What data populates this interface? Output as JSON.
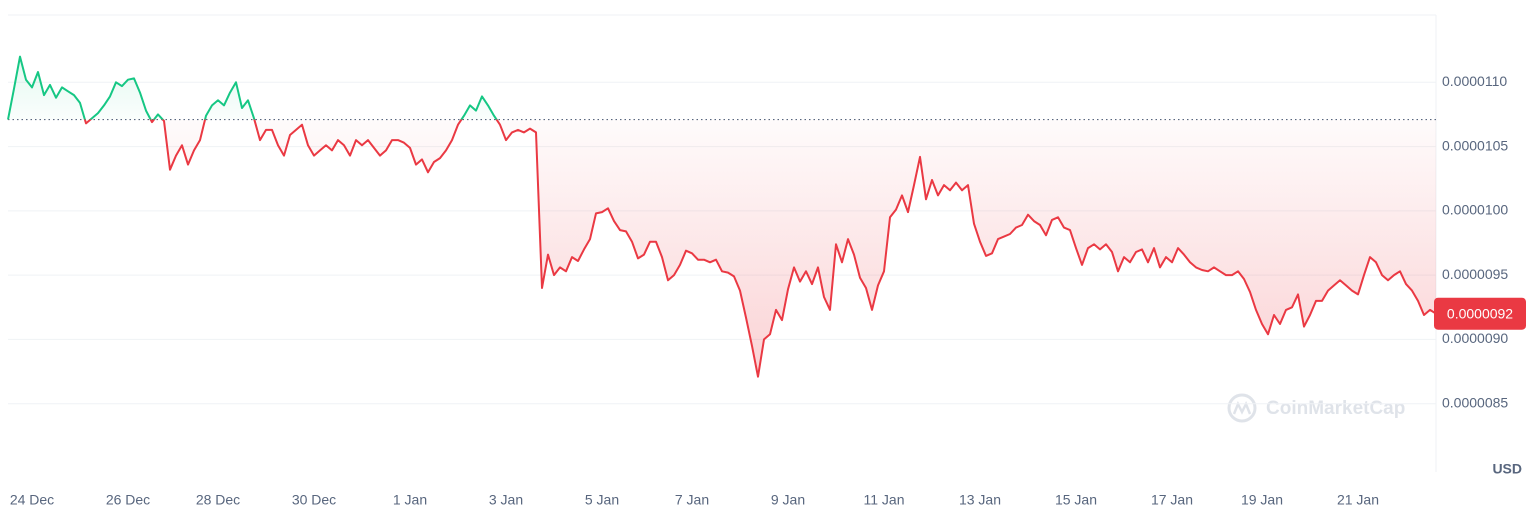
{
  "chart_data": {
    "type": "line",
    "categories": [
      null,
      null,
      null,
      null,
      "24 Dec",
      null,
      null,
      null,
      null,
      null,
      null,
      null,
      null,
      null,
      null,
      null,
      null,
      null,
      null,
      null,
      "26 Dec",
      null,
      null,
      null,
      null,
      null,
      null,
      null,
      null,
      null,
      null,
      null,
      null,
      null,
      null,
      "28 Dec",
      null,
      null,
      null,
      null,
      null,
      null,
      null,
      null,
      null,
      null,
      null,
      null,
      null,
      null,
      null,
      "30 Dec",
      null,
      null,
      null,
      null,
      null,
      null,
      null,
      null,
      null,
      null,
      null,
      null,
      null,
      null,
      null,
      "1 Jan",
      null,
      null,
      null,
      null,
      null,
      null,
      null,
      null,
      null,
      null,
      null,
      null,
      null,
      null,
      null,
      "3 Jan",
      null,
      null,
      null,
      null,
      null,
      null,
      null,
      null,
      null,
      null,
      null,
      null,
      null,
      null,
      null,
      "5 Jan",
      null,
      null,
      null,
      null,
      null,
      null,
      null,
      null,
      null,
      null,
      null,
      null,
      null,
      null,
      "7 Jan",
      null,
      null,
      null,
      null,
      null,
      null,
      null,
      null,
      null,
      null,
      null,
      null,
      null,
      null,
      null,
      "9 Jan",
      null,
      null,
      null,
      null,
      null,
      null,
      null,
      null,
      null,
      null,
      null,
      null,
      null,
      null,
      null,
      "11 Jan",
      null,
      null,
      null,
      null,
      null,
      null,
      null,
      null,
      null,
      null,
      null,
      null,
      null,
      null,
      null,
      "13 Jan",
      null,
      null,
      null,
      null,
      null,
      null,
      null,
      null,
      null,
      null,
      null,
      null,
      null,
      null,
      null,
      "15 Jan",
      null,
      null,
      null,
      null,
      null,
      null,
      null,
      null,
      null,
      null,
      null,
      null,
      null,
      null,
      null,
      "17 Jan",
      null,
      null,
      null,
      null,
      null,
      null,
      null,
      null,
      null,
      null,
      null,
      null,
      null,
      null,
      "19 Jan",
      null,
      null,
      null,
      null,
      null,
      null,
      null,
      null,
      null,
      null,
      null,
      null,
      null,
      null,
      null,
      "21 Jan",
      null,
      null,
      null,
      null,
      null,
      null,
      null,
      null,
      null,
      null,
      null,
      null,
      null
    ],
    "values": [
      1.071e-05,
      1.095e-05,
      1.12e-05,
      1.102e-05,
      1.096e-05,
      1.108e-05,
      1.09e-05,
      1.098e-05,
      1.088e-05,
      1.096e-05,
      1.093e-05,
      1.09e-05,
      1.084e-05,
      1.068e-05,
      1.072e-05,
      1.076e-05,
      1.082e-05,
      1.089e-05,
      1.1e-05,
      1.097e-05,
      1.102e-05,
      1.103e-05,
      1.092e-05,
      1.078e-05,
      1.069e-05,
      1.075e-05,
      1.07e-05,
      1.032e-05,
      1.043e-05,
      1.051e-05,
      1.036e-05,
      1.047e-05,
      1.055e-05,
      1.074e-05,
      1.082e-05,
      1.086e-05,
      1.082e-05,
      1.092e-05,
      1.1e-05,
      1.08e-05,
      1.086e-05,
      1.072e-05,
      1.055e-05,
      1.063e-05,
      1.063e-05,
      1.051e-05,
      1.043e-05,
      1.059e-05,
      1.063e-05,
      1.067e-05,
      1.051e-05,
      1.043e-05,
      1.047e-05,
      1.051e-05,
      1.047e-05,
      1.055e-05,
      1.051e-05,
      1.043e-05,
      1.055e-05,
      1.051e-05,
      1.055e-05,
      1.049e-05,
      1.043e-05,
      1.047e-05,
      1.055e-05,
      1.055e-05,
      1.053e-05,
      1.049e-05,
      1.036e-05,
      1.04e-05,
      1.03e-05,
      1.038e-05,
      1.041e-05,
      1.047e-05,
      1.055e-05,
      1.067e-05,
      1.074e-05,
      1.082e-05,
      1.078e-05,
      1.089e-05,
      1.082e-05,
      1.074e-05,
      1.067e-05,
      1.055e-05,
      1.061e-05,
      1.063e-05,
      1.061e-05,
      1.064e-05,
      1.061e-05,
      9.4e-06,
      9.66e-06,
      9.5e-06,
      9.56e-06,
      9.53e-06,
      9.64e-06,
      9.61e-06,
      9.7e-06,
      9.78e-06,
      9.98e-06,
      9.99e-06,
      1.002e-05,
      9.92e-06,
      9.85e-06,
      9.84e-06,
      9.76e-06,
      9.63e-06,
      9.66e-06,
      9.76e-06,
      9.76e-06,
      9.64e-06,
      9.46e-06,
      9.5e-06,
      9.58e-06,
      9.69e-06,
      9.67e-06,
      9.62e-06,
      9.62e-06,
      9.6e-06,
      9.62e-06,
      9.53e-06,
      9.52e-06,
      9.49e-06,
      9.38e-06,
      9.17e-06,
      8.95e-06,
      8.71e-06,
      9e-06,
      9.04e-06,
      9.23e-06,
      9.15e-06,
      9.39e-06,
      9.56e-06,
      9.45e-06,
      9.53e-06,
      9.43e-06,
      9.56e-06,
      9.33e-06,
      9.23e-06,
      9.74e-06,
      9.6e-06,
      9.78e-06,
      9.66e-06,
      9.48e-06,
      9.4e-06,
      9.23e-06,
      9.42e-06,
      9.53e-06,
      9.95e-06,
      1.001e-05,
      1.012e-05,
      9.99e-06,
      1.02e-05,
      1.042e-05,
      1.009e-05,
      1.024e-05,
      1.012e-05,
      1.02e-05,
      1.016e-05,
      1.022e-05,
      1.016e-05,
      1.02e-05,
      9.9e-06,
      9.76e-06,
      9.65e-06,
      9.67e-06,
      9.78e-06,
      9.8e-06,
      9.82e-06,
      9.87e-06,
      9.89e-06,
      9.97e-06,
      9.92e-06,
      9.89e-06,
      9.81e-06,
      9.93e-06,
      9.95e-06,
      9.87e-06,
      9.85e-06,
      9.71e-06,
      9.58e-06,
      9.71e-06,
      9.74e-06,
      9.7e-06,
      9.74e-06,
      9.68e-06,
      9.53e-06,
      9.64e-06,
      9.6e-06,
      9.68e-06,
      9.7e-06,
      9.6e-06,
      9.71e-06,
      9.56e-06,
      9.64e-06,
      9.6e-06,
      9.71e-06,
      9.66e-06,
      9.6e-06,
      9.56e-06,
      9.54e-06,
      9.53e-06,
      9.56e-06,
      9.53e-06,
      9.5e-06,
      9.5e-06,
      9.53e-06,
      9.47e-06,
      9.37e-06,
      9.23e-06,
      9.12e-06,
      9.04e-06,
      9.19e-06,
      9.12e-06,
      9.23e-06,
      9.25e-06,
      9.35e-06,
      9.1e-06,
      9.19e-06,
      9.3e-06,
      9.3e-06,
      9.38e-06,
      9.42e-06,
      9.46e-06,
      9.42e-06,
      9.38e-06,
      9.35e-06,
      9.5e-06,
      9.64e-06,
      9.6e-06,
      9.5e-06,
      9.46e-06,
      9.5e-06,
      9.53e-06,
      9.43e-06,
      9.38e-06,
      9.3e-06,
      9.19e-06,
      9.23e-06,
      9.2e-06
    ],
    "reference_value": 1.071e-05,
    "colors": {
      "up": "#16c784",
      "down": "#ea3943"
    },
    "ylim": [
      8e-06,
      1.15e-05
    ],
    "yticks": [
      {
        "value": 8.5e-06,
        "label": "0.0000085"
      },
      {
        "value": 9e-06,
        "label": "0.0000090"
      },
      {
        "value": 9.5e-06,
        "label": "0.0000095"
      },
      {
        "value": 1e-05,
        "label": "0.0000100"
      },
      {
        "value": 1.05e-05,
        "label": "0.0000105"
      },
      {
        "value": 1.1e-05,
        "label": "0.0000110"
      }
    ],
    "grid": true,
    "current_price": {
      "value": 9.2e-06,
      "label": "0.0000092"
    },
    "currency": "USD",
    "watermark": "CoinMarketCap"
  }
}
